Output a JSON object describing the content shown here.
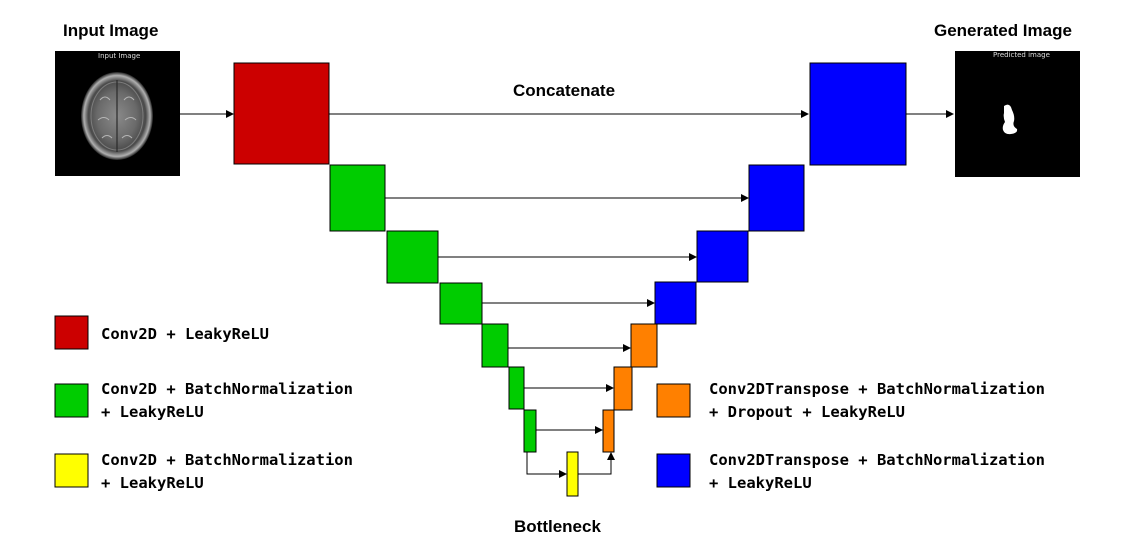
{
  "labels": {
    "input_title": "Input Image",
    "generated_title": "Generated Image",
    "concatenate": "Concatenate",
    "bottleneck": "Bottleneck",
    "input_thumb_caption": "Input Image",
    "predicted_thumb_caption": "Predicted image"
  },
  "legend": [
    {
      "color": "#cc0000",
      "lines": [
        "Conv2D + LeakyReLU"
      ]
    },
    {
      "color": "#00cc00",
      "lines": [
        "Conv2D + BatchNormalization",
        " + LeakyReLU"
      ]
    },
    {
      "color": "#ffff00",
      "lines": [
        "Conv2D + BatchNormalization",
        " + LeakyReLU"
      ]
    },
    {
      "color": "#ff8000",
      "lines": [
        "Conv2DTranspose + BatchNormalization",
        "+ Dropout + LeakyReLU"
      ]
    },
    {
      "color": "#0000ff",
      "lines": [
        "Conv2DTranspose + BatchNormalization",
        " + LeakyReLU"
      ]
    }
  ],
  "colors": {
    "conv_leaky": "#cc0000",
    "conv_bn": "#00cc00",
    "bottleneck": "#ffff00",
    "deconv_dropout": "#ff8000",
    "deconv_bn": "#0000ff"
  }
}
